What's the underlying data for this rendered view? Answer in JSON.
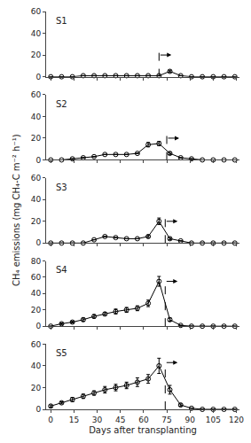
{
  "chart_data": [
    {
      "type": "line",
      "label": "S1",
      "x": [
        0,
        7,
        14,
        21,
        28,
        35,
        42,
        49,
        56,
        63,
        70,
        77,
        84,
        91,
        98,
        105,
        112,
        119
      ],
      "values": [
        0,
        0,
        0,
        1,
        1,
        1,
        1,
        1,
        1,
        1,
        1,
        5,
        1,
        0,
        0,
        0,
        0,
        0
      ],
      "errors": [
        0,
        0,
        0,
        0,
        0,
        0,
        0,
        0,
        0,
        0,
        0,
        1,
        0,
        0,
        0,
        0,
        0,
        0
      ],
      "color": "#000000",
      "marker": "circle-open",
      "line_style": "solid",
      "vline": {
        "x": 70,
        "y": [
          0,
          22.2
        ],
        "line_style": "dash",
        "color": "#000000"
      },
      "arrow": {
        "x": [
          70,
          78
        ],
        "y": 20,
        "color": "#000000"
      },
      "xlim": [
        -3,
        122
      ],
      "xticks": [
        0,
        15,
        30,
        45,
        60,
        75,
        90,
        105,
        120
      ],
      "ylim": [
        0,
        60
      ],
      "yticks": [
        0,
        20,
        40,
        60
      ],
      "grid": false,
      "tick_labels": "y"
    },
    {
      "type": "line",
      "label": "S2",
      "x": [
        0,
        7,
        14,
        21,
        28,
        35,
        42,
        49,
        56,
        63,
        70,
        77,
        84,
        91,
        98,
        105,
        112,
        119
      ],
      "values": [
        0,
        0,
        1,
        2,
        3,
        5,
        5,
        5,
        6,
        14,
        15,
        6,
        2,
        1,
        0,
        0,
        0,
        0
      ],
      "errors": [
        0,
        0,
        0,
        0,
        0,
        0,
        0,
        0,
        0,
        2,
        2,
        1,
        0,
        0,
        0,
        0,
        0,
        0
      ],
      "color": "#000000",
      "marker": "circle-open",
      "line_style": "solid",
      "vline": {
        "x": 75,
        "y": [
          0,
          22.2
        ],
        "line_style": "dash",
        "color": "#000000"
      },
      "arrow": {
        "x": [
          75,
          83
        ],
        "y": 20,
        "color": "#000000"
      },
      "xlim": [
        -3,
        122
      ],
      "xticks": [
        0,
        15,
        30,
        45,
        60,
        75,
        90,
        105,
        120
      ],
      "ylim": [
        0,
        60
      ],
      "yticks": [
        0,
        20,
        40,
        60
      ],
      "grid": false,
      "tick_labels": "y"
    },
    {
      "type": "line",
      "label": "S3",
      "x": [
        0,
        7,
        14,
        21,
        28,
        35,
        42,
        49,
        56,
        63,
        70,
        77,
        84,
        91,
        98,
        105,
        112,
        119
      ],
      "values": [
        0,
        0,
        0,
        0,
        3,
        6,
        5,
        4,
        4,
        6,
        20,
        4,
        2,
        0,
        0,
        0,
        0,
        0
      ],
      "errors": [
        0,
        0,
        0,
        0,
        0,
        0,
        0,
        0,
        0,
        1,
        3,
        1,
        0,
        0,
        0,
        0,
        0,
        0
      ],
      "color": "#000000",
      "marker": "circle-open",
      "line_style": "solid",
      "vline": {
        "x": 74,
        "y": [
          0,
          22.2
        ],
        "line_style": "dash",
        "color": "#000000"
      },
      "arrow": {
        "x": [
          74,
          82
        ],
        "y": 20,
        "color": "#000000"
      },
      "xlim": [
        -3,
        122
      ],
      "xticks": [
        0,
        15,
        30,
        45,
        60,
        75,
        90,
        105,
        120
      ],
      "ylim": [
        0,
        60
      ],
      "yticks": [
        0,
        20,
        40,
        60
      ],
      "ylabel": "CH₄ emissions (mg CH₄-C m⁻² h⁻¹)",
      "grid": false,
      "tick_labels": "y"
    },
    {
      "type": "line",
      "label": "S4",
      "x": [
        0,
        7,
        14,
        21,
        28,
        35,
        42,
        49,
        56,
        63,
        70,
        77,
        84,
        91,
        98,
        105,
        112,
        119
      ],
      "values": [
        0,
        3,
        5,
        8,
        12,
        15,
        18,
        20,
        22,
        28,
        55,
        8,
        1,
        0,
        0,
        0,
        0,
        0
      ],
      "errors": [
        0,
        1,
        1,
        2,
        2,
        2,
        3,
        3,
        3,
        4,
        6,
        2,
        0,
        0,
        0,
        0,
        0,
        0
      ],
      "color": "#000000",
      "marker": "circle-open",
      "line_style": "solid",
      "vline": {
        "x": 74,
        "y": [
          0,
          57
        ],
        "line_style": "dash",
        "color": "#000000"
      },
      "arrow": {
        "x": [
          74,
          82
        ],
        "y": 55,
        "color": "#000000"
      },
      "xlim": [
        -3,
        122
      ],
      "xticks": [
        0,
        15,
        30,
        45,
        60,
        75,
        90,
        105,
        120
      ],
      "ylim": [
        0,
        80
      ],
      "yticks": [
        0,
        20,
        40,
        60,
        80
      ],
      "grid": false,
      "tick_labels": "y"
    },
    {
      "type": "line",
      "label": "S5",
      "x": [
        0,
        7,
        14,
        21,
        28,
        35,
        42,
        49,
        56,
        63,
        70,
        77,
        84,
        91,
        98,
        105,
        112,
        119
      ],
      "values": [
        3,
        6,
        9,
        12,
        15,
        18,
        20,
        22,
        25,
        28,
        40,
        18,
        4,
        1,
        0,
        0,
        0,
        0
      ],
      "errors": [
        1,
        1,
        2,
        2,
        2,
        3,
        3,
        3,
        4,
        4,
        7,
        4,
        1,
        0,
        0,
        0,
        0,
        0
      ],
      "color": "#000000",
      "marker": "circle-open",
      "line_style": "solid",
      "vline": {
        "x": 74,
        "y": [
          0,
          43.8
        ],
        "line_style": "dash",
        "color": "#000000"
      },
      "arrow": {
        "x": [
          74,
          82
        ],
        "y": 43,
        "color": "#000000"
      },
      "xlim": [
        -3,
        122
      ],
      "xticks": [
        0,
        15,
        30,
        45,
        60,
        75,
        90,
        105,
        120
      ],
      "ylim": [
        0,
        60
      ],
      "yticks": [
        0,
        20,
        40,
        60
      ],
      "xlabel": "Days after transplanting",
      "grid": false
    }
  ]
}
